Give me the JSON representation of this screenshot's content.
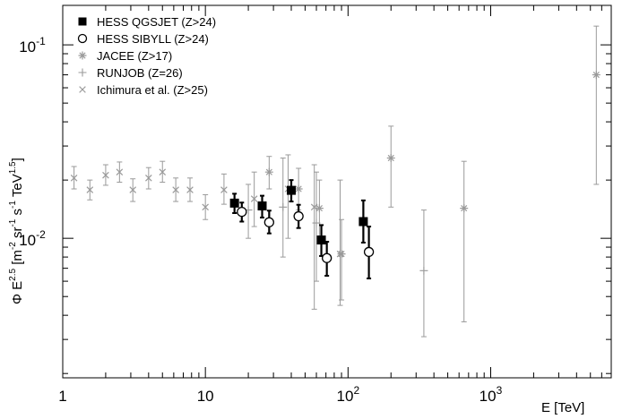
{
  "chart_data": {
    "type": "scatter",
    "title": "",
    "xlabel": {
      "main": "E [TeV]"
    },
    "ylabel": {
      "phi": "Φ E",
      "exp": "2.5",
      "unit_open": " [m",
      "m_exp": "-2",
      "sr": " sr",
      "sr_exp": "-1",
      "s": " s",
      "s_exp": "-1",
      "tev": " TeV",
      "tev_exp": "1.5",
      "close": "]"
    },
    "x_scale": "log",
    "y_scale": "log",
    "xlim": [
      1,
      7000
    ],
    "ylim": [
      0.0019,
      0.16
    ],
    "grid": false,
    "legend_position": "top-left",
    "x_ticks": [
      {
        "value": 1,
        "base": "1",
        "exp": ""
      },
      {
        "value": 10,
        "base": "10",
        "exp": ""
      },
      {
        "value": 100,
        "base": "10",
        "exp": "2"
      },
      {
        "value": 1000,
        "base": "10",
        "exp": "3"
      }
    ],
    "y_ticks": [
      {
        "value": 0.01,
        "base": "10",
        "exp": "-2"
      },
      {
        "value": 0.1,
        "base": "10",
        "exp": "-1"
      }
    ],
    "series": [
      {
        "name": "HESS QGSJET (Z>24)",
        "marker": "filled-square",
        "color": "#000000",
        "points": [
          {
            "x": 16,
            "y": 0.0152,
            "ylo": 0.0135,
            "yhi": 0.017
          },
          {
            "x": 25,
            "y": 0.0147,
            "ylo": 0.0128,
            "yhi": 0.0166
          },
          {
            "x": 40,
            "y": 0.0177,
            "ylo": 0.0155,
            "yhi": 0.02
          },
          {
            "x": 65,
            "y": 0.0098,
            "ylo": 0.0081,
            "yhi": 0.0117
          },
          {
            "x": 128,
            "y": 0.0122,
            "ylo": 0.0095,
            "yhi": 0.0157
          }
        ]
      },
      {
        "name": "HESS SIBYLL (Z>24)",
        "marker": "open-circle",
        "color": "#000000",
        "points": [
          {
            "x": 18,
            "y": 0.0137,
            "ylo": 0.0122,
            "yhi": 0.0153
          },
          {
            "x": 28,
            "y": 0.0121,
            "ylo": 0.0106,
            "yhi": 0.0139
          },
          {
            "x": 45,
            "y": 0.013,
            "ylo": 0.0113,
            "yhi": 0.0149
          },
          {
            "x": 71,
            "y": 0.0079,
            "ylo": 0.0064,
            "yhi": 0.0096
          },
          {
            "x": 140,
            "y": 0.0085,
            "ylo": 0.0062,
            "yhi": 0.0115
          }
        ]
      },
      {
        "name": "JACEE (Z>17)",
        "marker": "asterisk",
        "color": "#9a9a9a",
        "points": [
          {
            "x": 28,
            "y": 0.022,
            "ylo": 0.018,
            "yhi": 0.0265
          },
          {
            "x": 45,
            "y": 0.018,
            "ylo": 0.014,
            "yhi": 0.023
          },
          {
            "x": 63,
            "y": 0.0143,
            "ylo": 0.01,
            "yhi": 0.02
          },
          {
            "x": 90,
            "y": 0.0083,
            "ylo": 0.0048,
            "yhi": 0.0125
          },
          {
            "x": 200,
            "y": 0.026,
            "ylo": 0.0145,
            "yhi": 0.038
          },
          {
            "x": 650,
            "y": 0.0143,
            "ylo": 0.0037,
            "yhi": 0.025
          },
          {
            "x": 5500,
            "y": 0.07,
            "ylo": 0.019,
            "yhi": 0.125
          }
        ]
      },
      {
        "name": "RUNJOB (Z=26)",
        "marker": "plus",
        "color": "#9a9a9a",
        "points": [
          {
            "x": 20,
            "y": 0.014,
            "ylo": 0.01,
            "yhi": 0.019
          },
          {
            "x": 35,
            "y": 0.0145,
            "ylo": 0.008,
            "yhi": 0.026
          },
          {
            "x": 60,
            "y": 0.012,
            "ylo": 0.006,
            "yhi": 0.022
          },
          {
            "x": 340,
            "y": 0.0068,
            "ylo": 0.0031,
            "yhi": 0.014
          }
        ]
      },
      {
        "name": "Ichimura et al. (Z>25)",
        "marker": "cross",
        "color": "#9a9a9a",
        "points": [
          {
            "x": 1.2,
            "y": 0.0205,
            "ylo": 0.018,
            "yhi": 0.0235
          },
          {
            "x": 1.55,
            "y": 0.0178,
            "ylo": 0.0158,
            "yhi": 0.02
          },
          {
            "x": 2.0,
            "y": 0.0212,
            "ylo": 0.0188,
            "yhi": 0.024
          },
          {
            "x": 2.5,
            "y": 0.022,
            "ylo": 0.0195,
            "yhi": 0.0248
          },
          {
            "x": 3.1,
            "y": 0.0178,
            "ylo": 0.0155,
            "yhi": 0.0203
          },
          {
            "x": 4.0,
            "y": 0.0205,
            "ylo": 0.018,
            "yhi": 0.0232
          },
          {
            "x": 5.0,
            "y": 0.022,
            "ylo": 0.0195,
            "yhi": 0.025
          },
          {
            "x": 6.2,
            "y": 0.0178,
            "ylo": 0.0155,
            "yhi": 0.0205
          },
          {
            "x": 7.8,
            "y": 0.0178,
            "ylo": 0.0155,
            "yhi": 0.0205
          },
          {
            "x": 10,
            "y": 0.0145,
            "ylo": 0.0125,
            "yhi": 0.0168
          },
          {
            "x": 13.5,
            "y": 0.0178,
            "ylo": 0.015,
            "yhi": 0.0215
          },
          {
            "x": 22,
            "y": 0.016,
            "ylo": 0.0115,
            "yhi": 0.022
          },
          {
            "x": 38,
            "y": 0.018,
            "ylo": 0.01,
            "yhi": 0.027
          },
          {
            "x": 58,
            "y": 0.0145,
            "ylo": 0.0043,
            "yhi": 0.024
          },
          {
            "x": 88,
            "y": 0.0083,
            "ylo": 0.0045,
            "yhi": 0.02
          }
        ]
      }
    ]
  }
}
